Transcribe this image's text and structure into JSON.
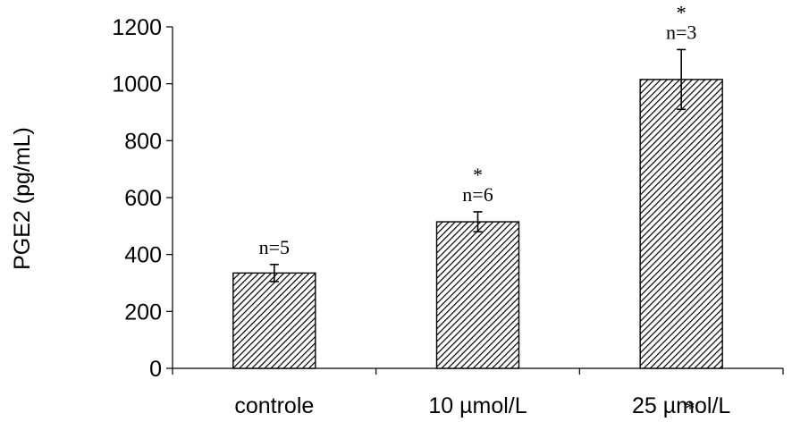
{
  "chart_data": {
    "type": "bar",
    "title": "",
    "xlabel": "",
    "ylabel": "PGE2 (pg/mL)",
    "ylim": [
      0,
      1200
    ],
    "yticks": [
      0,
      200,
      400,
      600,
      800,
      1000,
      1200
    ],
    "categories": [
      "controle",
      "10 µmol/L",
      "25 µmol/L"
    ],
    "values": [
      335,
      515,
      1015
    ],
    "errors": [
      30,
      35,
      105
    ],
    "annotations": [
      "n=5",
      "n=6",
      "n=3"
    ],
    "significance": [
      "",
      "*",
      "*"
    ],
    "extra_marks": [
      "*"
    ],
    "bar_fill": "diagonal-hatch",
    "grid": false,
    "legend": "none"
  }
}
